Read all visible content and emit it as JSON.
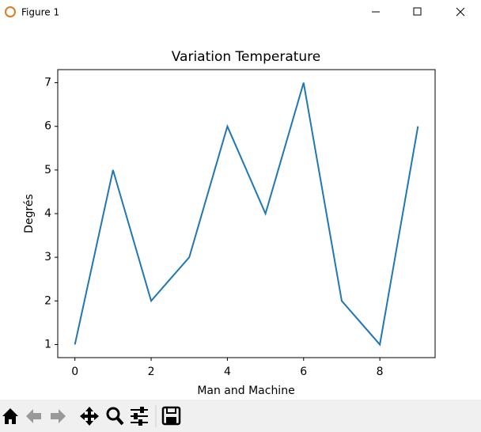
{
  "window": {
    "title": "Figure 1"
  },
  "chart_data": {
    "type": "line",
    "title": "Variation Temperature",
    "x_label": "Man and Machine",
    "y_label": "Degrés",
    "x": [
      0,
      1,
      2,
      3,
      4,
      5,
      6,
      7,
      8,
      9
    ],
    "values": [
      1,
      5,
      2,
      3,
      6,
      4,
      7,
      2,
      1,
      6
    ],
    "color": "#1f77b4",
    "xlim": [
      -0.45,
      9.45
    ],
    "xticks": [
      0,
      2,
      4,
      6,
      8
    ],
    "ylim": [
      0.7,
      7.3
    ],
    "yticks": [
      1,
      2,
      3,
      4,
      5,
      6,
      7
    ]
  }
}
